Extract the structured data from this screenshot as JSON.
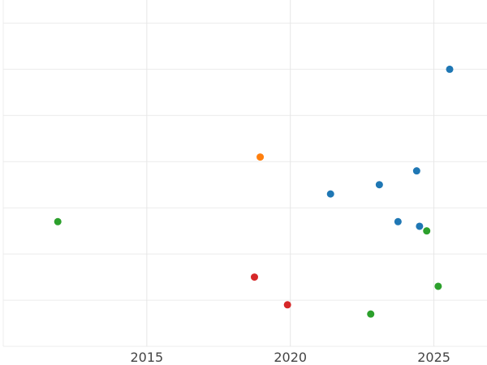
{
  "chart_data": {
    "type": "scatter",
    "title": "",
    "xlabel": "",
    "ylabel": "",
    "x_ticks": [
      "2015",
      "2020",
      "2025"
    ],
    "xlim": [
      2010.0,
      2026.85
    ],
    "ylim": [
      0,
      7.5
    ],
    "grid": true,
    "colors": [
      "#1f77b4",
      "#ff7f0e",
      "#2ca02c",
      "#d62728"
    ],
    "points": [
      {
        "x": 2011.9,
        "y": 2.7,
        "color": "#2ca02c"
      },
      {
        "x": 2018.75,
        "y": 1.5,
        "color": "#d62728"
      },
      {
        "x": 2018.95,
        "y": 4.1,
        "color": "#ff7f0e"
      },
      {
        "x": 2019.9,
        "y": 0.9,
        "color": "#d62728"
      },
      {
        "x": 2021.4,
        "y": 3.3,
        "color": "#1f77b4"
      },
      {
        "x": 2022.8,
        "y": 0.7,
        "color": "#2ca02c"
      },
      {
        "x": 2023.1,
        "y": 3.5,
        "color": "#1f77b4"
      },
      {
        "x": 2023.75,
        "y": 2.7,
        "color": "#1f77b4"
      },
      {
        "x": 2024.4,
        "y": 3.8,
        "color": "#1f77b4"
      },
      {
        "x": 2024.5,
        "y": 2.6,
        "color": "#1f77b4"
      },
      {
        "x": 2024.75,
        "y": 2.5,
        "color": "#2ca02c"
      },
      {
        "x": 2025.15,
        "y": 1.3,
        "color": "#2ca02c"
      },
      {
        "x": 2025.55,
        "y": 6.0,
        "color": "#1f77b4"
      }
    ]
  }
}
